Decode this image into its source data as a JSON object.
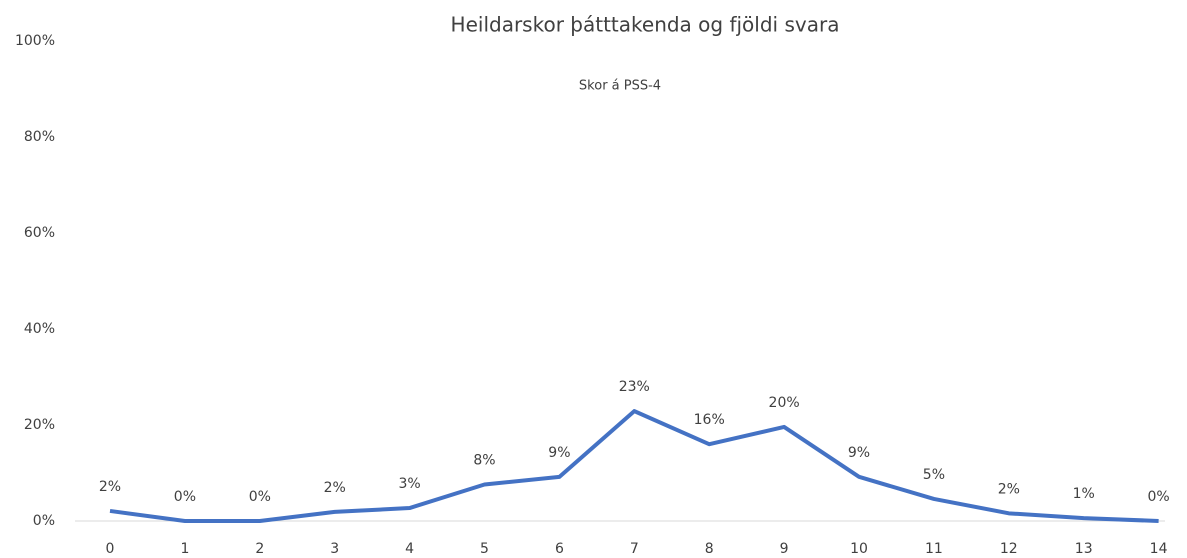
{
  "chart_data": {
    "type": "line",
    "title": "Heildarskor þátttakenda og fjöldi svara",
    "subtitle": "Skor á PSS-4",
    "categories": [
      "0",
      "1",
      "2",
      "3",
      "4",
      "5",
      "6",
      "7",
      "8",
      "9",
      "10",
      "11",
      "12",
      "13",
      "14"
    ],
    "series": [
      {
        "name": "Skor á PSS-4",
        "color": "#4472c4",
        "values": [
          2.1,
          0,
          0,
          1.9,
          2.7,
          7.6,
          9.2,
          22.9,
          16,
          19.6,
          9.2,
          4.6,
          1.6,
          0.6,
          0
        ],
        "value_labels": [
          "2%",
          "0%",
          "0%",
          "2%",
          "3%",
          "8%",
          "9%",
          "23%",
          "16%",
          "20%",
          "9%",
          "5%",
          "2%",
          "1%",
          "0%"
        ]
      }
    ],
    "ylim": [
      0,
      100
    ],
    "yticks": [
      {
        "value": 0,
        "label": "0%"
      },
      {
        "value": 20,
        "label": "20%"
      },
      {
        "value": 40,
        "label": "40%"
      },
      {
        "value": 60,
        "label": "60%"
      },
      {
        "value": 80,
        "label": "80%"
      },
      {
        "value": 100,
        "label": "100%"
      }
    ],
    "grid": false
  }
}
